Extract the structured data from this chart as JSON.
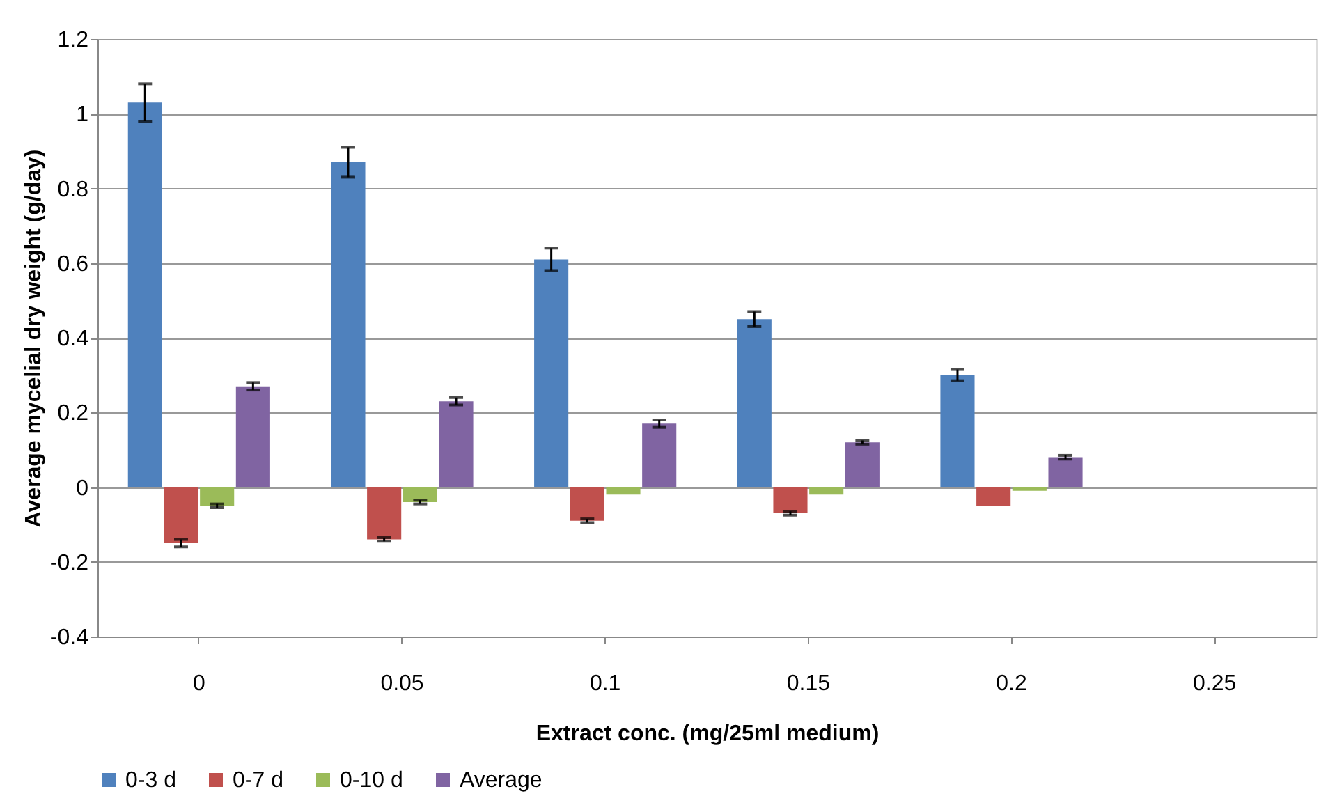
{
  "chart_data": {
    "type": "bar",
    "xlabel": "Extract conc. (mg/25ml medium)",
    "ylabel": "Average mycelial dry weight (g/day)",
    "categories": [
      "0",
      "0.05",
      "0.1",
      "0.15",
      "0.2",
      "0.25"
    ],
    "series": [
      {
        "name": "0-3 d",
        "color": "#4f81bd",
        "values": [
          1.03,
          0.87,
          0.61,
          0.45,
          0.3,
          0
        ],
        "errors": [
          0.05,
          0.04,
          0.03,
          0.02,
          0.015,
          null
        ]
      },
      {
        "name": "0-7 d",
        "color": "#c0504d",
        "values": [
          -0.15,
          -0.14,
          -0.09,
          -0.07,
          -0.05,
          0
        ],
        "errors": [
          0.01,
          0.005,
          0.005,
          0.005,
          null,
          null
        ]
      },
      {
        "name": "0-10 d",
        "color": "#9bbb59",
        "values": [
          -0.05,
          -0.04,
          -0.02,
          -0.02,
          -0.01,
          0
        ],
        "errors": [
          0.005,
          0.005,
          null,
          null,
          null,
          null
        ]
      },
      {
        "name": "Average",
        "color": "#8064a2",
        "values": [
          0.27,
          0.23,
          0.17,
          0.12,
          0.08,
          0
        ],
        "errors": [
          0.01,
          0.01,
          0.01,
          0.005,
          0.005,
          null
        ]
      }
    ],
    "ylim": [
      -0.4,
      1.2
    ],
    "yticks": [
      -0.4,
      -0.2,
      0,
      0.2,
      0.4,
      0.6,
      0.8,
      1,
      1.2
    ],
    "grid": "y",
    "legend": "bottom"
  }
}
